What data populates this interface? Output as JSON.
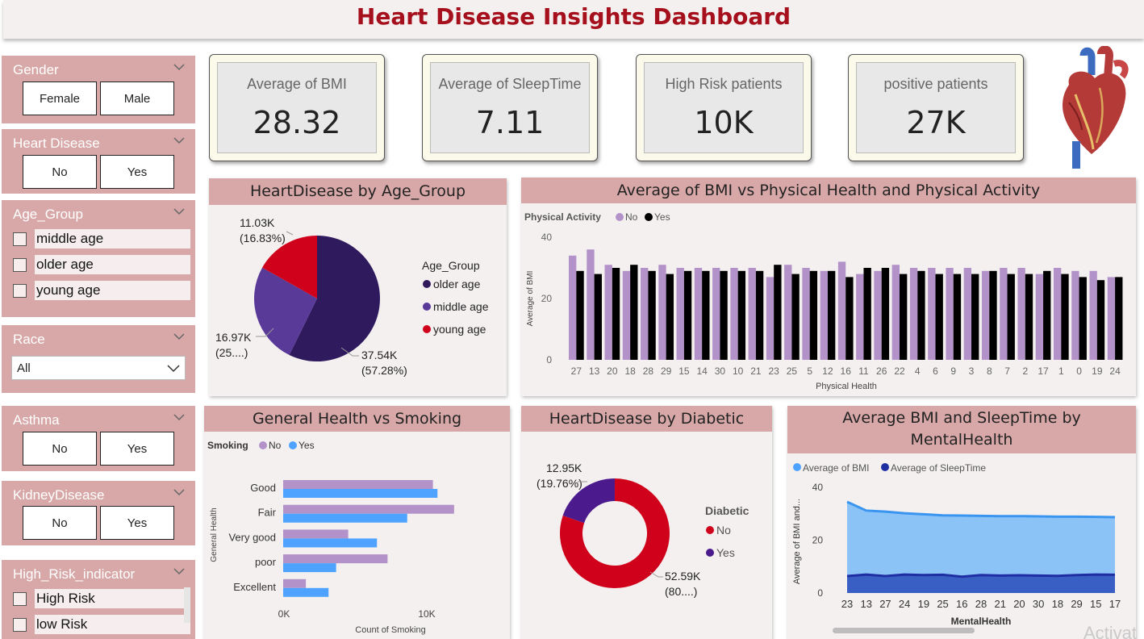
{
  "title": "Heart Disease Insights Dashboard",
  "slicers": {
    "gender": {
      "title": "Gender",
      "options": [
        "Female",
        "Male"
      ]
    },
    "heart_disease": {
      "title": "Heart Disease",
      "options": [
        "No",
        "Yes"
      ]
    },
    "age_group": {
      "title": "Age_Group",
      "items": [
        "middle age",
        "older age",
        "young age"
      ]
    },
    "race": {
      "title": "Race",
      "selected": "All"
    },
    "asthma": {
      "title": "Asthma",
      "options": [
        "No",
        "Yes"
      ]
    },
    "kidney": {
      "title": "KidneyDisease",
      "options": [
        "No",
        "Yes"
      ]
    },
    "high_risk": {
      "title": "High_Risk_indicator",
      "items": [
        "High Risk",
        "low Risk"
      ]
    }
  },
  "kpis": [
    {
      "label": "Average of BMI",
      "value": "28.32"
    },
    {
      "label": "Average of SleepTime",
      "value": "7.11"
    },
    {
      "label": "High Risk patients",
      "value": "10K"
    },
    {
      "label": "positive patients",
      "value": "27K"
    }
  ],
  "colors": {
    "purple_light": "#b392c9",
    "black": "#000000",
    "dark_purple": "#2f1a5e",
    "mid_purple": "#5a3a98",
    "red": "#d0021b",
    "blue": "#4da3ff",
    "navy": "#1f2fa3",
    "area_fill": "#8cc3f7",
    "header": "#d8a8a8"
  },
  "watermark": "Activat",
  "chart_data": [
    {
      "type": "pie",
      "title": "HeartDisease by Age_Group",
      "legend_title": "Age_Group",
      "slices": [
        {
          "name": "older age",
          "value": 37.54,
          "label": "37.54K",
          "pct": "(57.28%)"
        },
        {
          "name": "middle age",
          "value": 16.97,
          "label": "16.97K",
          "pct": "(25....)"
        },
        {
          "name": "young age",
          "value": 11.03,
          "label": "11.03K",
          "pct": "(16.83%)"
        }
      ]
    },
    {
      "type": "bar",
      "title": "Average of BMI vs Physical Health and Physical Activity",
      "legend_title": "Physical Activity",
      "xlabel": "Physical Health",
      "ylabel": "Average of BMI",
      "ylim": [
        0,
        40
      ],
      "yticks": [
        "0",
        "20",
        "40"
      ],
      "categories": [
        "27",
        "13",
        "20",
        "18",
        "28",
        "29",
        "15",
        "14",
        "30",
        "10",
        "21",
        "23",
        "25",
        "5",
        "12",
        "16",
        "11",
        "26",
        "22",
        "4",
        "6",
        "9",
        "3",
        "8",
        "7",
        "2",
        "17",
        "1",
        "0",
        "19",
        "24"
      ],
      "series": [
        {
          "name": "No",
          "values": [
            34,
            36,
            31,
            29,
            30,
            31,
            30,
            30,
            30,
            30,
            30,
            27,
            31,
            30,
            29,
            32,
            28,
            29,
            31,
            30,
            30,
            30,
            30,
            29,
            30,
            30,
            28,
            30,
            29,
            29,
            27
          ]
        },
        {
          "name": "Yes",
          "values": [
            29,
            28,
            30,
            31,
            29,
            28,
            29,
            29,
            29,
            29,
            29,
            31,
            28,
            29,
            29,
            27,
            30,
            30,
            28,
            29,
            28,
            28,
            28,
            29,
            28,
            28,
            29,
            28,
            27,
            26,
            27
          ]
        }
      ]
    },
    {
      "type": "bar",
      "title": "General Health vs Smoking",
      "legend_title": "Smoking",
      "xlabel": "Count of Smoking",
      "ylabel": "General Health",
      "xticks": [
        "0K",
        "10K"
      ],
      "xlim": [
        0,
        12000
      ],
      "categories": [
        "Good",
        "Fair",
        "Very good",
        "poor",
        "Excellent"
      ],
      "series": [
        {
          "name": "No",
          "values": [
            9900,
            11300,
            4300,
            6900,
            1500
          ]
        },
        {
          "name": "Yes",
          "values": [
            10200,
            8200,
            6200,
            3500,
            3000
          ]
        }
      ]
    },
    {
      "type": "pie",
      "title": "HeartDisease by Diabetic",
      "legend_title": "Diabetic",
      "slices": [
        {
          "name": "No",
          "value": 52.59,
          "label": "52.59K",
          "pct": "(80....)"
        },
        {
          "name": "Yes",
          "value": 12.95,
          "label": "12.95K",
          "pct": "(19.76%)"
        }
      ]
    },
    {
      "type": "area",
      "title": "Average BMI and SleepTime by MentalHealth",
      "xlabel": "MentalHealth",
      "ylabel": "Average of BMI and...",
      "ylim": [
        0,
        40
      ],
      "yticks": [
        "0",
        "20",
        "40"
      ],
      "categories": [
        "23",
        "13",
        "27",
        "24",
        "19",
        "25",
        "16",
        "28",
        "21",
        "20",
        "30",
        "18",
        "29",
        "15",
        "17"
      ],
      "series": [
        {
          "name": "Average of BMI",
          "values": [
            34.5,
            31.2,
            30.8,
            30.2,
            29.8,
            29.4,
            29.3,
            29.2,
            29.1,
            29.1,
            29.0,
            28.9,
            28.9,
            28.8,
            28.7
          ]
        },
        {
          "name": "Average of SleepTime",
          "values": [
            6.4,
            7.0,
            6.4,
            7.0,
            6.8,
            6.9,
            6.2,
            6.8,
            6.6,
            6.7,
            6.6,
            6.5,
            6.8,
            7.0,
            6.9
          ]
        }
      ]
    }
  ]
}
